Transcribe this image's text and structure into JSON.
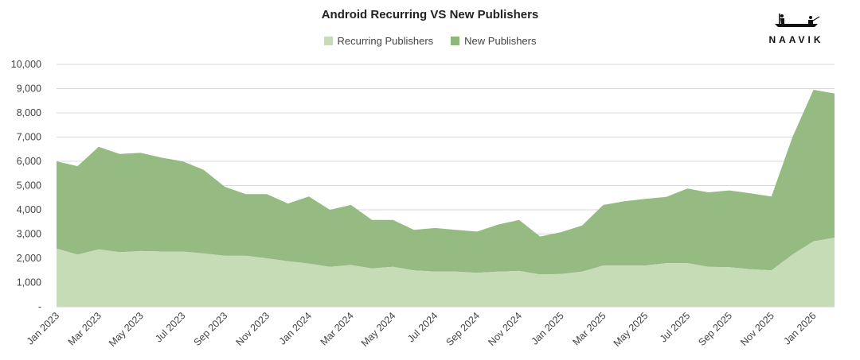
{
  "chart_data": {
    "type": "area",
    "stacked": true,
    "title": "Android Recurring VS New Publishers",
    "xlabel": "",
    "ylabel": "",
    "ylim": [
      0,
      10000
    ],
    "y_ticks": [
      "-",
      "1,000",
      "2,000",
      "3,000",
      "4,000",
      "5,000",
      "6,000",
      "7,000",
      "8,000",
      "9,000",
      "10,000"
    ],
    "y_tick_values": [
      0,
      1000,
      2000,
      3000,
      4000,
      5000,
      6000,
      7000,
      8000,
      9000,
      10000
    ],
    "x": [
      "Jan 2023",
      "Feb 2023",
      "Mar 2023",
      "Apr 2023",
      "May 2023",
      "Jun 2023",
      "Jul 2023",
      "Aug 2023",
      "Sep 2023",
      "Oct 2023",
      "Nov 2023",
      "Dec 2023",
      "Jan 2024",
      "Feb 2024",
      "Mar 2024",
      "Apr 2024",
      "May 2024",
      "Jun 2024",
      "Jul 2024",
      "Aug 2024",
      "Sep 2024",
      "Oct 2024",
      "Nov 2024",
      "Dec 2024",
      "Jan 2025",
      "Feb 2025",
      "Mar 2025",
      "Apr 2025",
      "May 2025",
      "Jun 2025",
      "Jul 2025",
      "Aug 2025",
      "Sep 2025",
      "Oct 2025",
      "Nov 2025",
      "Dec 2025",
      "Jan 2026",
      "Feb 2026"
    ],
    "x_tick_labels": [
      "Jan 2023",
      "Mar 2023",
      "May 2023",
      "Jul 2023",
      "Sep 2023",
      "Nov 2023",
      "Jan 2024",
      "Mar 2024",
      "May 2024",
      "Jul 2024",
      "Sep 2024",
      "Nov 2024",
      "Jan 2025",
      "Mar 2025",
      "May 2025",
      "Jul 2025",
      "Sep 2025",
      "Nov 2025",
      "Jan 2026"
    ],
    "series": [
      {
        "name": "Recurring Publishers",
        "color": "#c5dcb6",
        "values": [
          2400,
          2150,
          2370,
          2250,
          2300,
          2280,
          2280,
          2200,
          2100,
          2100,
          2000,
          1880,
          1780,
          1650,
          1720,
          1580,
          1650,
          1500,
          1450,
          1450,
          1400,
          1450,
          1480,
          1330,
          1350,
          1450,
          1700,
          1700,
          1700,
          1800,
          1800,
          1650,
          1630,
          1550,
          1500,
          2150,
          2700,
          2850
        ]
      },
      {
        "name": "New Publishers",
        "color": "#8fb77c",
        "values": [
          3600,
          3650,
          4230,
          4050,
          4050,
          3870,
          3720,
          3450,
          2850,
          2550,
          2650,
          2380,
          2770,
          2350,
          2480,
          2000,
          1930,
          1670,
          1800,
          1720,
          1700,
          1940,
          2100,
          1570,
          1730,
          1900,
          2500,
          2650,
          2750,
          2730,
          3080,
          3070,
          3170,
          3130,
          3050,
          4850,
          6250,
          5950
        ]
      }
    ],
    "grid": true,
    "legend_position": "top"
  },
  "brand": {
    "name": "NAAVIK"
  }
}
